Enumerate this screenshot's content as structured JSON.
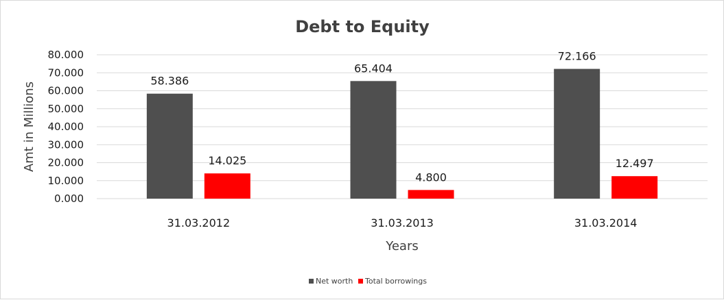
{
  "chart_data": {
    "type": "bar",
    "title": "Debt to Equity",
    "xlabel": "Years",
    "ylabel": "Amt in Millions",
    "categories": [
      "31.03.2012",
      "31.03.2013",
      "31.03.2014"
    ],
    "series": [
      {
        "name": "Net worth",
        "values": [
          58.386,
          65.404,
          72.166
        ],
        "labels": [
          "58.386",
          "65.404",
          "72.166"
        ],
        "color": "#4f4f4f"
      },
      {
        "name": "Total borrowings",
        "values": [
          14.025,
          4.8,
          12.497
        ],
        "labels": [
          "14.025",
          "4.800",
          "12.497"
        ],
        "color": "#ff0000"
      }
    ],
    "ylim": [
      0,
      80
    ],
    "yticks": [
      "0.000",
      "10.000",
      "20.000",
      "30.000",
      "40.000",
      "50.000",
      "60.000",
      "70.000",
      "80.000"
    ],
    "grid": true,
    "legend_position": "bottom"
  }
}
